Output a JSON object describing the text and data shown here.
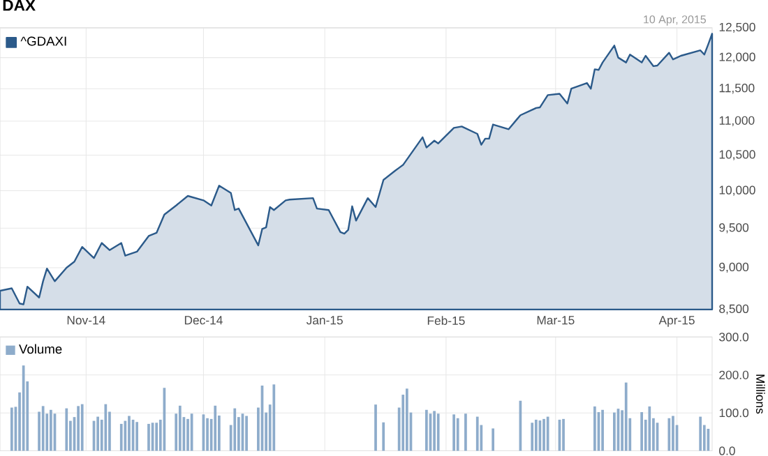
{
  "chart_data": [
    {
      "type": "area",
      "title": "DAX",
      "annotations": [
        "10 Apr, 2015"
      ],
      "log": true,
      "grid": true,
      "legend": "top left",
      "xlim": [
        "2014-10-10",
        "2015-04-10"
      ],
      "xticks": [
        {
          "value": "2014-11-01",
          "label": "Nov-14"
        },
        {
          "value": "2014-12-01",
          "label": "Dec-14"
        },
        {
          "value": "2015-01-01",
          "label": "Jan-15"
        },
        {
          "value": "2015-02-01",
          "label": "Feb-15"
        },
        {
          "value": "2015-03-01",
          "label": "Mar-15"
        },
        {
          "value": "2015-04-01",
          "label": "Apr-15"
        }
      ],
      "ylim": [
        8500,
        12500
      ],
      "yticks": [
        {
          "value": 8500,
          "label": "8,500"
        },
        {
          "value": 9000,
          "label": "9,000"
        },
        {
          "value": 9500,
          "label": "9,500"
        },
        {
          "value": 10000,
          "label": "10,000"
        },
        {
          "value": 10500,
          "label": "10,500"
        },
        {
          "value": 11000,
          "label": "11,000"
        },
        {
          "value": 11500,
          "label": "11,500"
        },
        {
          "value": 12000,
          "label": "12,000"
        },
        {
          "value": 12500,
          "label": "12,500"
        }
      ],
      "series": [
        {
          "name": "^GDAXI",
          "color": "#2b5a8a",
          "x": [
            "2014-10-10",
            "2014-10-13",
            "2014-10-15",
            "2014-10-16",
            "2014-10-17",
            "2014-10-20",
            "2014-10-21",
            "2014-10-22",
            "2014-10-24",
            "2014-10-27",
            "2014-10-29",
            "2014-10-31",
            "2014-11-03",
            "2014-11-05",
            "2014-11-07",
            "2014-11-10",
            "2014-11-11",
            "2014-11-14",
            "2014-11-17",
            "2014-11-19",
            "2014-11-21",
            "2014-11-24",
            "2014-11-27",
            "2014-12-01",
            "2014-12-03",
            "2014-12-05",
            "2014-12-08",
            "2014-12-09",
            "2014-12-10",
            "2014-12-15",
            "2014-12-16",
            "2014-12-17",
            "2014-12-18",
            "2014-12-19",
            "2014-12-22",
            "2014-12-23",
            "2014-12-29",
            "2014-12-30",
            "2015-01-02",
            "2015-01-05",
            "2015-01-06",
            "2015-01-07",
            "2015-01-08",
            "2015-01-09",
            "2015-01-12",
            "2015-01-14",
            "2015-01-16",
            "2015-01-19",
            "2015-01-20",
            "2015-01-21",
            "2015-01-26",
            "2015-01-27",
            "2015-01-29",
            "2015-01-30",
            "2015-02-03",
            "2015-02-05",
            "2015-02-09",
            "2015-02-10",
            "2015-02-11",
            "2015-02-12",
            "2015-02-13",
            "2015-02-17",
            "2015-02-19",
            "2015-02-20",
            "2015-02-24",
            "2015-02-25",
            "2015-02-27",
            "2015-03-02",
            "2015-03-04",
            "2015-03-05",
            "2015-03-09",
            "2015-03-10",
            "2015-03-11",
            "2015-03-12",
            "2015-03-13",
            "2015-03-16",
            "2015-03-17",
            "2015-03-19",
            "2015-03-20",
            "2015-03-23",
            "2015-03-24",
            "2015-03-26",
            "2015-03-27",
            "2015-03-30",
            "2015-03-31",
            "2015-04-01",
            "2015-04-02",
            "2015-04-07",
            "2015-04-08",
            "2015-04-09",
            "2015-04-10"
          ],
          "values": [
            8720,
            8750,
            8570,
            8560,
            8770,
            8640,
            8835,
            8990,
            8835,
            9000,
            9075,
            9260,
            9120,
            9310,
            9220,
            9310,
            9150,
            9200,
            9400,
            9440,
            9680,
            9800,
            9930,
            9870,
            9800,
            10070,
            9970,
            9740,
            9760,
            9280,
            9490,
            9510,
            9780,
            9740,
            9870,
            9880,
            9900,
            9760,
            9740,
            9450,
            9430,
            9480,
            9790,
            9600,
            9900,
            9780,
            10150,
            10280,
            10320,
            10360,
            10760,
            10610,
            10710,
            10670,
            10900,
            10920,
            10810,
            10650,
            10740,
            10740,
            10950,
            10880,
            11020,
            11090,
            11200,
            11210,
            11400,
            11420,
            11270,
            11500,
            11590,
            11500,
            11810,
            11800,
            11920,
            12200,
            12000,
            11920,
            12050,
            11920,
            12030,
            11860,
            11870,
            12080,
            11970,
            12000,
            12030,
            12120,
            12050,
            12220,
            12400
          ]
        }
      ]
    },
    {
      "type": "bar",
      "ylabel": "Millions",
      "grid": true,
      "legend": "top left",
      "tick_labels": "y",
      "xlim": [
        "2014-10-10",
        "2015-04-10"
      ],
      "xticks": [
        {
          "value": "2014-11-01",
          "label": null
        },
        {
          "value": "2014-12-01",
          "label": null
        },
        {
          "value": "2015-01-01",
          "label": null
        },
        {
          "value": "2015-02-01",
          "label": null
        },
        {
          "value": "2015-03-01",
          "label": null
        },
        {
          "value": "2015-04-01",
          "label": null
        }
      ],
      "ylim": [
        0,
        300
      ],
      "yticks": [
        {
          "value": 0,
          "label": "0.0"
        },
        {
          "value": 100,
          "label": "100.0"
        },
        {
          "value": 200,
          "label": "200.0"
        },
        {
          "value": 300,
          "label": "300.0"
        }
      ],
      "series": [
        {
          "name": "Volume",
          "color": "#8eaccb",
          "x": [
            "2014-10-13",
            "2014-10-14",
            "2014-10-15",
            "2014-10-16",
            "2014-10-17",
            "2014-10-20",
            "2014-10-21",
            "2014-10-22",
            "2014-10-23",
            "2014-10-24",
            "2014-10-27",
            "2014-10-28",
            "2014-10-29",
            "2014-10-30",
            "2014-10-31",
            "2014-11-03",
            "2014-11-04",
            "2014-11-05",
            "2014-11-06",
            "2014-11-07",
            "2014-11-10",
            "2014-11-11",
            "2014-11-12",
            "2014-11-13",
            "2014-11-14",
            "2014-11-17",
            "2014-11-18",
            "2014-11-19",
            "2014-11-20",
            "2014-11-21",
            "2014-11-24",
            "2014-11-25",
            "2014-11-26",
            "2014-11-27",
            "2014-11-28",
            "2014-12-01",
            "2014-12-02",
            "2014-12-03",
            "2014-12-04",
            "2014-12-05",
            "2014-12-08",
            "2014-12-09",
            "2014-12-10",
            "2014-12-11",
            "2014-12-12",
            "2014-12-15",
            "2014-12-16",
            "2014-12-17",
            "2014-12-18",
            "2014-12-19",
            "2015-01-14",
            "2015-01-16",
            "2015-01-20",
            "2015-01-21",
            "2015-01-22",
            "2015-01-23",
            "2015-01-27",
            "2015-01-28",
            "2015-01-29",
            "2015-01-30",
            "2015-02-03",
            "2015-02-04",
            "2015-02-06",
            "2015-02-09",
            "2015-02-10",
            "2015-02-13",
            "2015-02-20",
            "2015-02-23",
            "2015-02-24",
            "2015-02-25",
            "2015-02-26",
            "2015-02-27",
            "2015-03-02",
            "2015-03-03",
            "2015-03-11",
            "2015-03-12",
            "2015-03-13",
            "2015-03-16",
            "2015-03-17",
            "2015-03-18",
            "2015-03-19",
            "2015-03-20",
            "2015-03-23",
            "2015-03-24",
            "2015-03-25",
            "2015-03-26",
            "2015-03-27",
            "2015-03-30",
            "2015-03-31",
            "2015-04-01",
            "2015-04-07",
            "2015-04-08",
            "2015-04-09"
          ],
          "values": [
            114,
            116,
            154,
            225,
            183,
            103,
            118,
            98,
            108,
            98,
            112,
            79,
            89,
            118,
            123,
            79,
            90,
            82,
            123,
            103,
            71,
            79,
            92,
            82,
            76,
            71,
            74,
            74,
            82,
            166,
            98,
            119,
            89,
            84,
            98,
            96,
            86,
            84,
            119,
            93,
            68,
            112,
            89,
            98,
            92,
            114,
            172,
            101,
            122,
            175,
            122,
            75,
            114,
            148,
            164,
            101,
            108,
            98,
            105,
            98,
            96,
            86,
            98,
            90,
            68,
            59,
            132,
            74,
            82,
            80,
            84,
            90,
            82,
            84,
            117,
            102,
            108,
            101,
            111,
            107,
            180,
            86,
            102,
            82,
            117,
            86,
            74,
            86,
            92,
            68,
            90,
            68,
            58
          ]
        }
      ]
    }
  ]
}
